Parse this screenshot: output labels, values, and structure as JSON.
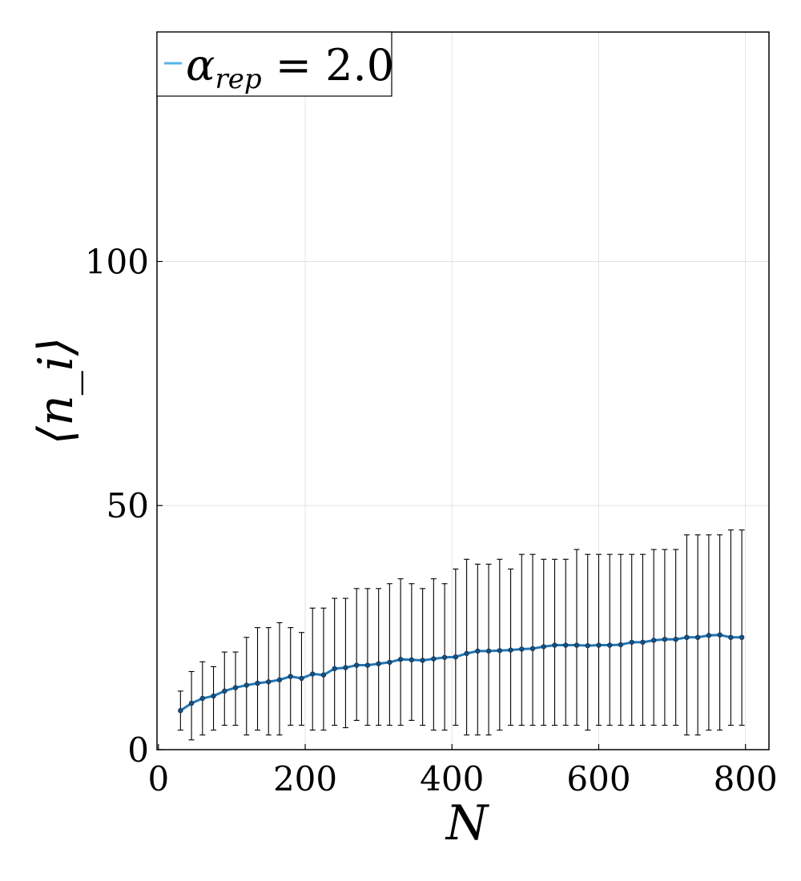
{
  "chart_data": {
    "type": "line",
    "xlabel": "N",
    "ylabel": "⟨n_i⟩",
    "xlim": [
      -2,
      832
    ],
    "ylim": [
      0,
      147
    ],
    "xticks": [
      0,
      200,
      400,
      600,
      800
    ],
    "yticks": [
      0,
      50,
      100
    ],
    "xtick_labels": [
      "0",
      "200",
      "400",
      "600",
      "800"
    ],
    "ytick_labels": [
      "0",
      "50",
      "100"
    ],
    "grid": true,
    "legend_position": "top-left",
    "series": [
      {
        "name": "α_rep = 2.0",
        "color": "#1f77b4",
        "legend_color": "#56b4e9",
        "x": [
          30,
          45,
          60,
          75,
          90,
          105,
          120,
          135,
          150,
          165,
          180,
          195,
          210,
          225,
          240,
          255,
          270,
          285,
          300,
          315,
          330,
          345,
          360,
          375,
          390,
          405,
          420,
          435,
          450,
          465,
          480,
          495,
          510,
          525,
          540,
          555,
          570,
          585,
          600,
          615,
          630,
          645,
          660,
          675,
          690,
          705,
          720,
          735,
          750,
          765,
          780,
          795
        ],
        "y": [
          8,
          9.5,
          10.5,
          11,
          12,
          12.7,
          13.2,
          13.6,
          13.9,
          14.3,
          15,
          14.6,
          15.5,
          15.3,
          16.6,
          16.8,
          17.3,
          17.3,
          17.6,
          17.9,
          18.5,
          18.4,
          18.3,
          18.6,
          18.9,
          19,
          19.7,
          20.2,
          20.2,
          20.3,
          20.4,
          20.6,
          20.7,
          21.1,
          21.4,
          21.4,
          21.4,
          21.3,
          21.4,
          21.4,
          21.5,
          22,
          22,
          22.4,
          22.6,
          22.6,
          23,
          23,
          23.4,
          23.5,
          23,
          23
        ],
        "err_low": [
          4,
          2,
          3,
          4,
          5,
          5,
          3,
          4,
          3,
          3,
          5,
          5,
          4,
          4,
          5,
          4.5,
          6,
          5,
          5,
          5,
          5,
          6,
          5,
          4,
          4,
          5,
          3,
          3,
          3,
          4,
          5,
          5,
          5,
          5,
          5,
          5,
          5,
          4,
          5,
          5,
          5,
          5,
          5,
          5,
          5,
          5,
          3,
          3,
          4,
          4,
          5,
          5
        ],
        "err_high": [
          12,
          16,
          18,
          17,
          20,
          20,
          23,
          25,
          25,
          26,
          25,
          24,
          29,
          29,
          31,
          31,
          33,
          33,
          33,
          34,
          35,
          34,
          33,
          35,
          34,
          37,
          39,
          38,
          38,
          39,
          37,
          40,
          40,
          39,
          39,
          39,
          41,
          40,
          40,
          40,
          40,
          40,
          40,
          41,
          41,
          41,
          44,
          44,
          44,
          44,
          45,
          45
        ]
      }
    ]
  }
}
